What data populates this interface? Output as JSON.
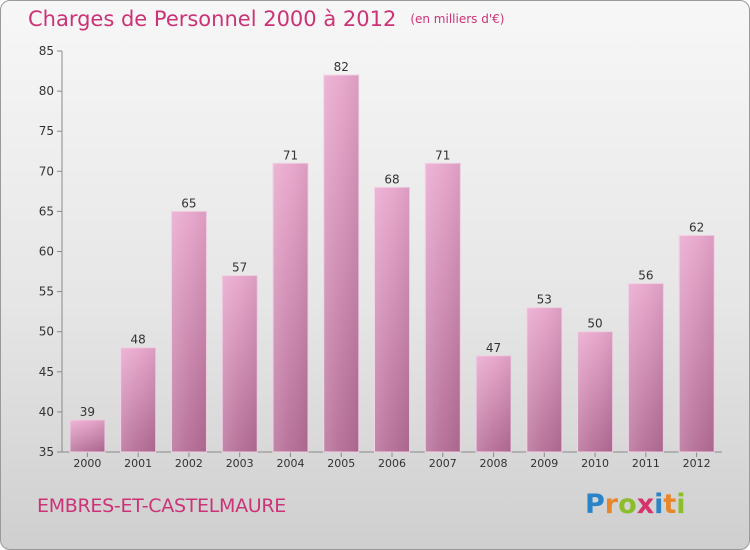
{
  "title": "Charges de Personnel 2000 à 2012",
  "subtitle": "(en milliers d'€)",
  "commune": "EMBRES-ET-CASTELMAURE",
  "logo": "Proxiti",
  "colors": {
    "accent": "#cc3377",
    "bar_top": "#e8a6cc",
    "bar_bottom": "#b86f98"
  },
  "chart_data": {
    "type": "bar",
    "categories": [
      "2000",
      "2001",
      "2002",
      "2003",
      "2004",
      "2005",
      "2006",
      "2007",
      "2008",
      "2009",
      "2010",
      "2011",
      "2012"
    ],
    "values": [
      39,
      48,
      65,
      57,
      71,
      82,
      68,
      71,
      47,
      53,
      50,
      56,
      62
    ],
    "yticks": [
      35,
      40,
      45,
      50,
      55,
      60,
      65,
      70,
      75,
      80,
      85
    ],
    "ylim": [
      35,
      85
    ],
    "grid": false,
    "legend": "none"
  }
}
